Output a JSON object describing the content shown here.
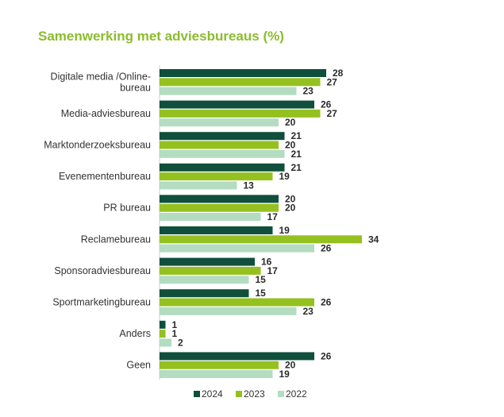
{
  "chart_data": {
    "type": "bar",
    "orientation": "horizontal",
    "title": "Samenwerking met adviesbureaus (%)",
    "categories": [
      [
        "Digitale media /Online-",
        "bureau"
      ],
      [
        "Media-adviesbureau"
      ],
      [
        "Marktonderzoeksbureau"
      ],
      [
        "Evenementenbureau"
      ],
      [
        "PR bureau"
      ],
      [
        "Reclamebureau"
      ],
      [
        "Sponsoradviesbureau"
      ],
      [
        "Sportmarketingbureau"
      ],
      [
        "Anders"
      ],
      [
        "Geen"
      ]
    ],
    "series": [
      {
        "name": "2024",
        "color": "#0f4f3c",
        "values": [
          28,
          26,
          21,
          21,
          20,
          19,
          16,
          15,
          1,
          26
        ]
      },
      {
        "name": "2023",
        "color": "#94c11f",
        "values": [
          27,
          27,
          20,
          19,
          20,
          34,
          17,
          26,
          1,
          20
        ]
      },
      {
        "name": "2022",
        "color": "#b3dcc1",
        "values": [
          23,
          20,
          21,
          13,
          17,
          26,
          15,
          23,
          2,
          19
        ]
      }
    ],
    "legend_position": "bottom-right",
    "grid": false,
    "title_color": "#8cbc2e"
  }
}
